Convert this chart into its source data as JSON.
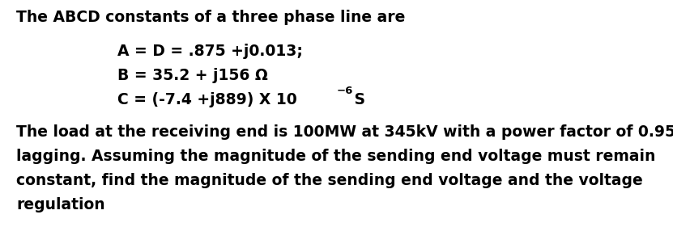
{
  "background_color": "#ffffff",
  "title_text": "The ABCD constants of a three phase line are",
  "line1": "A = D = .875 +j0.013;",
  "line2": "B = 35.2 + j156 Ω",
  "line3_main": "C = (-7.4 +j889) X 10",
  "line3_sup": "−6",
  "line3_s": " S",
  "para1": "The load at the receiving end is 100MW at 345kV with a power factor of 0.95",
  "para2": "lagging. Assuming the magnitude of the sending end voltage must remain",
  "para3": "constant, find the magnitude of the sending end voltage and the voltage",
  "para4": "regulation",
  "fontsize": 13.5,
  "sup_fontsize": 9.5
}
